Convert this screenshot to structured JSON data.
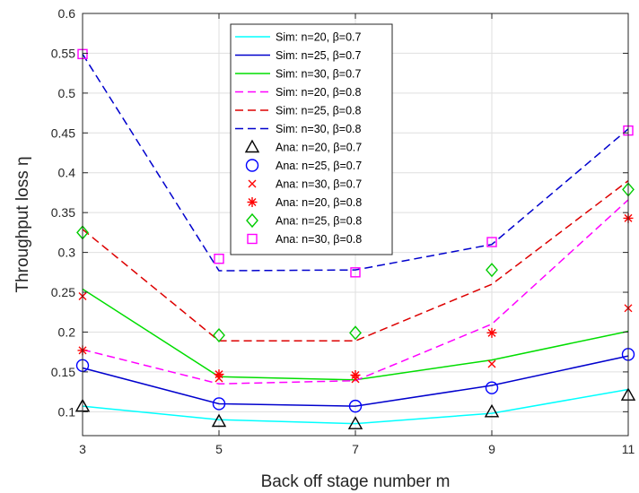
{
  "chart_data": {
    "type": "line",
    "title": "",
    "xlabel": "Back off stage number m",
    "ylabel": "Throughput loss η",
    "x": [
      3,
      5,
      7,
      9,
      11
    ],
    "xlim": [
      3,
      11
    ],
    "ylim": [
      0.07,
      0.6
    ],
    "xticks": [
      "3",
      "5",
      "7",
      "9",
      "11"
    ],
    "yticks": [
      "0.1",
      "0.15",
      "0.2",
      "0.25",
      "0.3",
      "0.35",
      "0.4",
      "0.45",
      "0.5",
      "0.55",
      "0.6"
    ],
    "grid": true,
    "legend_position": "top-center",
    "series": [
      {
        "name": "Sim: n=20,  β=0.7",
        "kind": "sim",
        "style": "solid",
        "color": "#00FFFF",
        "values": [
          0.107,
          0.09,
          0.085,
          0.098,
          0.128
        ]
      },
      {
        "name": "Sim: n=25,  β=0.7",
        "kind": "sim",
        "style": "solid",
        "color": "#0000CD",
        "values": [
          0.155,
          0.11,
          0.107,
          0.133,
          0.17
        ]
      },
      {
        "name": "Sim: n=30,  β=0.7",
        "kind": "sim",
        "style": "solid",
        "color": "#00DD00",
        "values": [
          0.254,
          0.144,
          0.14,
          0.165,
          0.201
        ]
      },
      {
        "name": "Sim: n=20,  β=0.8",
        "kind": "sim",
        "style": "dashed",
        "color": "#FF00FF",
        "values": [
          0.178,
          0.135,
          0.139,
          0.21,
          0.366
        ]
      },
      {
        "name": "Sim: n=25,  β=0.8",
        "kind": "sim",
        "style": "dashed",
        "color": "#DD0000",
        "values": [
          0.329,
          0.189,
          0.189,
          0.26,
          0.39
        ]
      },
      {
        "name": "Sim: n=30,  β=0.8",
        "kind": "sim",
        "style": "dashed",
        "color": "#0000CD",
        "values": [
          0.549,
          0.277,
          0.278,
          0.31,
          0.455
        ]
      },
      {
        "name": "Ana: n=20,  β=0.7",
        "kind": "ana",
        "marker": "triangle",
        "color": "#000000",
        "values": [
          0.107,
          0.088,
          0.085,
          0.1,
          0.121
        ]
      },
      {
        "name": "Ana: n=25,  β=0.7",
        "kind": "ana",
        "marker": "circle",
        "color": "#0000FF",
        "values": [
          0.158,
          0.11,
          0.107,
          0.13,
          0.172
        ]
      },
      {
        "name": "Ana: n=30,  β=0.7",
        "kind": "ana",
        "marker": "x",
        "color": "#FF0000",
        "values": [
          0.245,
          0.142,
          0.141,
          0.16,
          0.23
        ]
      },
      {
        "name": "Ana: n=20,  β=0.8",
        "kind": "ana",
        "marker": "asterisk",
        "color": "#FF0000",
        "values": [
          0.177,
          0.147,
          0.146,
          0.199,
          0.343
        ]
      },
      {
        "name": "Ana: n=25,  β=0.8",
        "kind": "ana",
        "marker": "diamond",
        "color": "#00CC00",
        "values": [
          0.325,
          0.196,
          0.199,
          0.278,
          0.379
        ]
      },
      {
        "name": "Ana: n=30,  β=0.8",
        "kind": "ana",
        "marker": "square",
        "color": "#FF00FF",
        "values": [
          0.549,
          0.292,
          0.275,
          0.313,
          0.453
        ]
      }
    ]
  }
}
